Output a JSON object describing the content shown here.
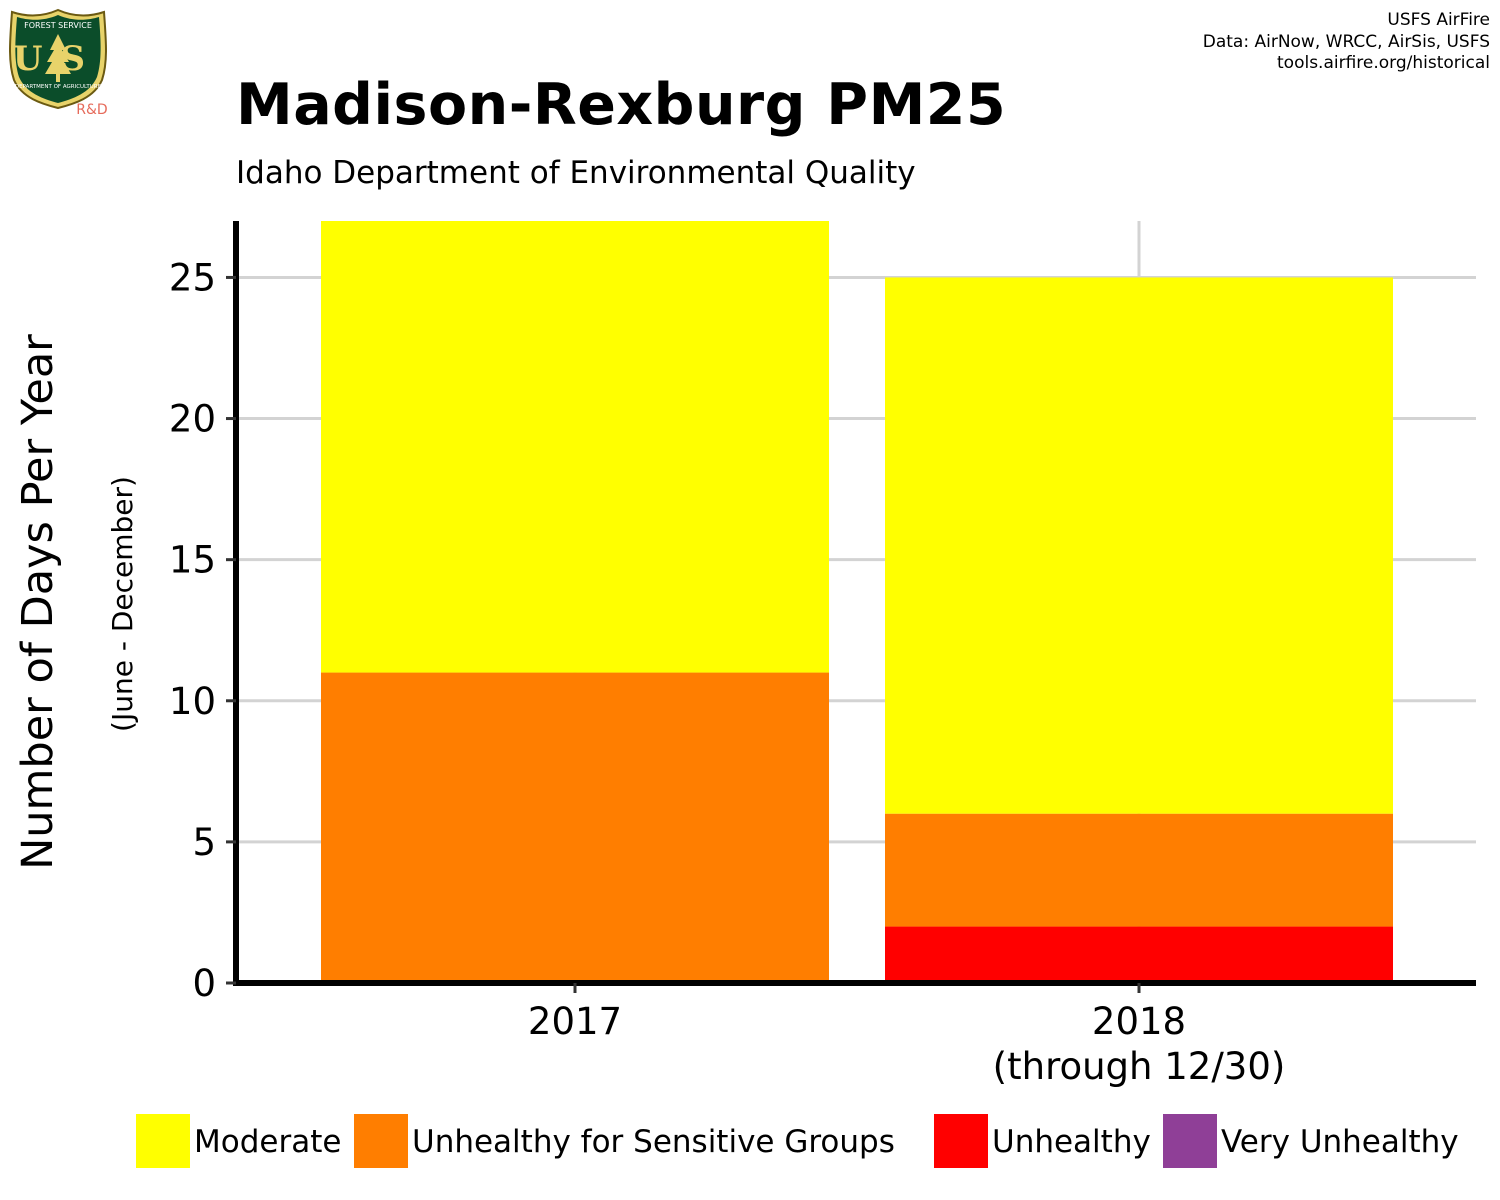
{
  "credits": {
    "line1": "USFS AirFire",
    "line2": "Data: AirNow, WRCC, AirSis, USFS",
    "line3": "tools.airfire.org/historical"
  },
  "logo": {
    "top_text": "FOREST SERVICE",
    "letters": "US",
    "bottom_text": "DEPARTMENT OF AGRICULTURE",
    "badge": "R&D",
    "icon": "forest-service-shield-icon",
    "colors": {
      "shield": "#0b4d2a",
      "trim": "#e8d36a",
      "badge": "#e66b5b"
    }
  },
  "chart_data": {
    "type": "bar",
    "stacked": true,
    "title": "Madison-Rexburg PM25",
    "subtitle": "Idaho Department of Environmental Quality",
    "ylabel": "Number of Days Per Year",
    "ylabel_sub": "(June - December)",
    "xlabel": "",
    "categories": [
      [
        "2017"
      ],
      [
        "2018",
        "(through 12/30)"
      ]
    ],
    "ylim": [
      0,
      27
    ],
    "yticks": [
      0,
      5,
      10,
      15,
      20,
      25
    ],
    "grid": true,
    "legend_position": "bottom",
    "series": [
      {
        "name": "Very Unhealthy",
        "color": "#8f3f97",
        "values": [
          0,
          0
        ]
      },
      {
        "name": "Unhealthy",
        "color": "#ff0000",
        "values": [
          0,
          2
        ]
      },
      {
        "name": "Unhealthy for Sensitive Groups",
        "color": "#ff7e00",
        "values": [
          11,
          4
        ]
      },
      {
        "name": "Moderate",
        "color": "#ffff00",
        "values": [
          16,
          19
        ]
      }
    ],
    "legend_order": [
      "Moderate",
      "Unhealthy for Sensitive Groups",
      "Unhealthy",
      "Very Unhealthy"
    ]
  }
}
